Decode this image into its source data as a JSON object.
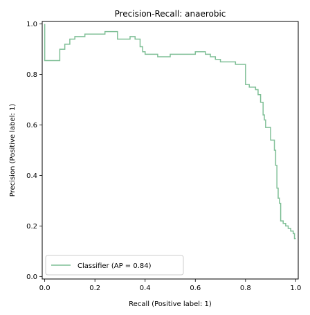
{
  "chart_data": {
    "type": "line",
    "title": "Precision-Recall: anaerobic",
    "xlabel": "Recall (Positive label: 1)",
    "ylabel": "Precision (Positive label: 1)",
    "xlim": [
      -0.01,
      1.01
    ],
    "ylim": [
      -0.01,
      1.01
    ],
    "xticks": [
      "0.0",
      "0.2",
      "0.4",
      "0.6",
      "0.8",
      "1.0"
    ],
    "yticks": [
      "0.0",
      "0.2",
      "0.4",
      "0.6",
      "0.8",
      "1.0"
    ],
    "grid": false,
    "legend_position": "lower-left",
    "line_color": "#7fbf96",
    "drawstyle": "steps-post",
    "series": [
      {
        "name": "Classifier (AP = 0.84)",
        "recall": [
          1.0,
          0.995,
          0.99,
          0.98,
          0.97,
          0.96,
          0.95,
          0.94,
          0.935,
          0.93,
          0.925,
          0.92,
          0.915,
          0.9,
          0.89,
          0.88,
          0.875,
          0.87,
          0.86,
          0.85,
          0.84,
          0.825,
          0.815,
          0.805,
          0.8,
          0.8,
          0.76,
          0.73,
          0.7,
          0.68,
          0.66,
          0.64,
          0.6,
          0.56,
          0.5,
          0.45,
          0.43,
          0.4,
          0.39,
          0.38,
          0.36,
          0.34,
          0.3,
          0.29,
          0.24,
          0.2,
          0.16,
          0.12,
          0.1,
          0.08,
          0.06,
          0.06,
          0.0
        ],
        "precision": [
          0.15,
          0.17,
          0.18,
          0.19,
          0.2,
          0.21,
          0.22,
          0.29,
          0.31,
          0.35,
          0.44,
          0.5,
          0.54,
          0.59,
          0.59,
          0.62,
          0.64,
          0.69,
          0.72,
          0.74,
          0.75,
          0.75,
          0.76,
          0.76,
          0.84,
          0.84,
          0.85,
          0.85,
          0.86,
          0.87,
          0.88,
          0.89,
          0.88,
          0.88,
          0.87,
          0.88,
          0.88,
          0.89,
          0.91,
          0.94,
          0.95,
          0.94,
          0.94,
          0.97,
          0.96,
          0.96,
          0.95,
          0.94,
          0.92,
          0.9,
          0.9,
          0.855,
          1.0
        ]
      }
    ]
  }
}
